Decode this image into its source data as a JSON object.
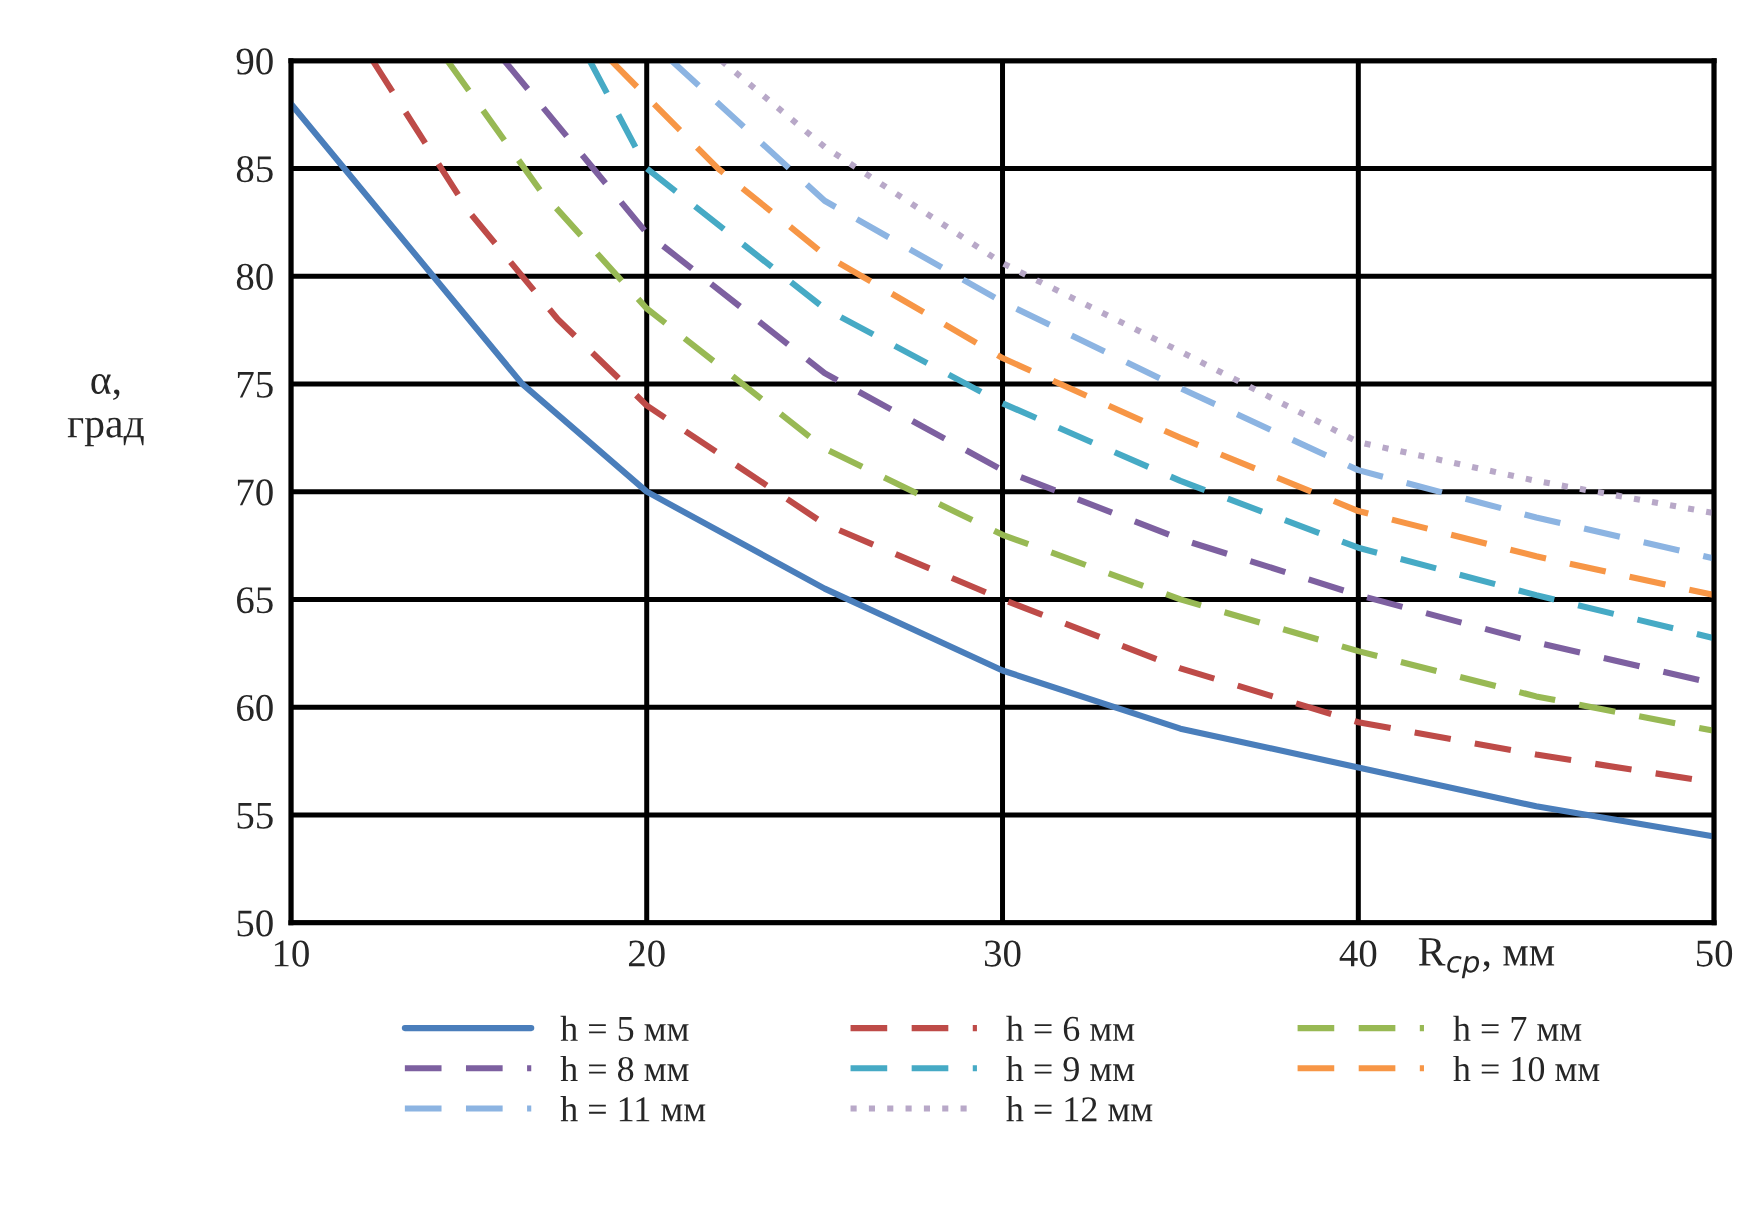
{
  "chart_data": {
    "type": "line",
    "ylabel": "α,\nград",
    "xlabel": "R$_{ср}$, мм",
    "xlim": [
      10,
      50
    ],
    "xticks": [
      10,
      20,
      30,
      40,
      50
    ],
    "ylim": [
      50,
      90
    ],
    "yticks": [
      50,
      55,
      60,
      65,
      70,
      75,
      80,
      85,
      90
    ],
    "grid": true,
    "legend": "bottom",
    "marker": "none",
    "series": [
      {
        "name": "h = 5 мм",
        "color": "#4a7ebb",
        "line_style": "solid",
        "x": [
          10,
          12,
          14,
          16.5,
          20,
          25,
          30,
          35,
          40,
          45,
          50
        ],
        "values": [
          88,
          84,
          80,
          75,
          70,
          65.5,
          61.7,
          59,
          57.2,
          55.4,
          54
        ]
      },
      {
        "name": "h = 6 мм",
        "color": "#be4b48",
        "line_style": "dashed",
        "x": [
          12.3,
          15,
          17.5,
          20,
          25,
          30,
          35,
          40,
          45,
          50
        ],
        "values": [
          90,
          83,
          78,
          74,
          68.5,
          65,
          61.8,
          59.3,
          57.8,
          56.5
        ]
      },
      {
        "name": "h = 7 мм",
        "color": "#98b954",
        "line_style": "dashed",
        "x": [
          14.4,
          17,
          20,
          25,
          30,
          35,
          40,
          45,
          50
        ],
        "values": [
          90,
          84,
          78.5,
          72,
          68,
          65,
          62.6,
          60.5,
          58.9
        ]
      },
      {
        "name": "h = 8 мм",
        "color": "#7d60a0",
        "line_style": "dashed",
        "x": [
          16,
          18,
          20,
          25,
          30,
          35,
          40,
          45,
          50
        ],
        "values": [
          90,
          86,
          82,
          75.5,
          71,
          67.8,
          65.2,
          63,
          61.1
        ]
      },
      {
        "name": "h = 9 мм",
        "color": "#46aac5",
        "line_style": "dashed",
        "x": [
          18.4,
          20,
          25,
          30,
          35,
          40,
          45,
          50
        ],
        "values": [
          90,
          85,
          78.5,
          74.1,
          70.5,
          67.4,
          65.2,
          63.2
        ]
      },
      {
        "name": "h = 10 мм",
        "color": "#f79646",
        "line_style": "dashed",
        "x": [
          19,
          22,
          25,
          30,
          35,
          40,
          45,
          50
        ],
        "values": [
          90,
          85,
          81,
          76.2,
          72.5,
          69.1,
          67,
          65.2
        ]
      },
      {
        "name": "h = 11 мм",
        "color": "#8cb4e2",
        "line_style": "dashed",
        "x": [
          20.7,
          25,
          30,
          35,
          40,
          45,
          50
        ],
        "values": [
          90,
          83.5,
          78.8,
          74.8,
          71,
          68.8,
          66.9
        ]
      },
      {
        "name": "h = 12 мм",
        "color": "#b8a8c8",
        "line_style": "dotted",
        "x": [
          22.1,
          25,
          30,
          35,
          40,
          45,
          50
        ],
        "values": [
          90,
          86,
          80.6,
          76.5,
          72.3,
          70.5,
          69
        ]
      }
    ]
  }
}
